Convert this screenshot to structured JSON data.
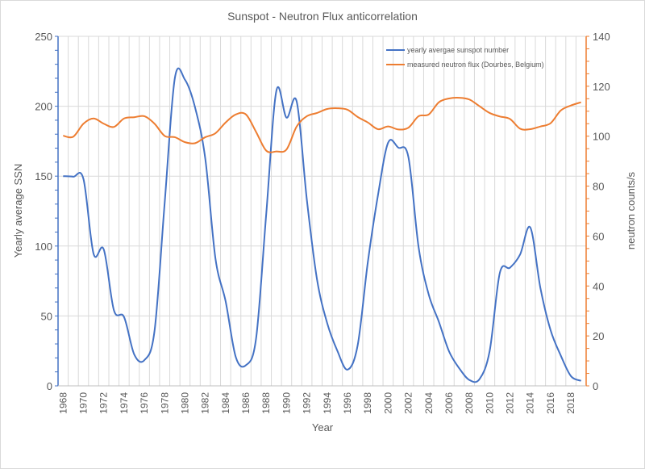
{
  "chart_data": {
    "type": "line",
    "title": "Sunspot - Neutron Flux anticorrelation",
    "xlabel": "Year",
    "ylabel": "Yearly average SSN",
    "y2label": "neutron counts/s",
    "ylim": [
      0,
      250
    ],
    "y2lim": [
      0,
      140
    ],
    "yticks": [
      0,
      50,
      100,
      150,
      200,
      250
    ],
    "y2ticks": [
      0,
      20,
      40,
      60,
      80,
      100,
      120,
      140
    ],
    "xtick_labels": [
      "1968",
      "1970",
      "1972",
      "1974",
      "1976",
      "1978",
      "1980",
      "1982",
      "1984",
      "1986",
      "1988",
      "1990",
      "1992",
      "1994",
      "1996",
      "1998",
      "2000",
      "2002",
      "2004",
      "2006",
      "2008",
      "2010",
      "2012",
      "2014",
      "2016",
      "2018"
    ],
    "grid": true,
    "legend_position": "top-right",
    "x": [
      1968,
      1969,
      1970,
      1971,
      1972,
      1973,
      1974,
      1975,
      1976,
      1977,
      1978,
      1979,
      1980,
      1981,
      1982,
      1983,
      1984,
      1985,
      1986,
      1987,
      1988,
      1989,
      1990,
      1991,
      1992,
      1993,
      1994,
      1995,
      1996,
      1997,
      1998,
      1999,
      2000,
      2001,
      2002,
      2003,
      2004,
      2005,
      2006,
      2007,
      2008,
      2009,
      2010,
      2011,
      2012,
      2013,
      2014,
      2015,
      2016,
      2017,
      2018,
      2019
    ],
    "series": [
      {
        "name": "yearly avergae sunspot number",
        "axis": "left",
        "color": "#4472c4",
        "values": [
          150,
          149.6,
          148,
          94.4,
          97.6,
          54.1,
          49.2,
          22.5,
          18.4,
          39.3,
          131,
          220.1,
          218.9,
          198.9,
          162.4,
          91,
          60.5,
          20.6,
          14.8,
          33.9,
          123,
          211.1,
          191.8,
          203.3,
          133,
          76.1,
          44.9,
          25.1,
          11.6,
          28.9,
          88.3,
          136.3,
          173.9,
          170.4,
          163.6,
          99.3,
          65.3,
          45.8,
          24.7,
          12.6,
          4.2,
          4.8,
          24.9,
          80.8,
          84.5,
          94,
          113.3,
          69.8,
          39.8,
          21.7,
          7,
          3.6
        ]
      },
      {
        "name": "measured neutron flux (Dourbes, Belgium)",
        "axis": "right",
        "color": "#ed7d31",
        "values": [
          100.2,
          99.8,
          105,
          107.1,
          105,
          103.7,
          107.1,
          107.6,
          108,
          105,
          100.1,
          99.6,
          97.6,
          97.2,
          99.6,
          101.2,
          105.5,
          108.7,
          108.7,
          101.7,
          94.2,
          93.9,
          94.7,
          103.9,
          108,
          109.3,
          110.9,
          111.2,
          110.6,
          107.7,
          105.5,
          102.8,
          103.9,
          102.7,
          103.4,
          108,
          108.7,
          113.6,
          115.1,
          115.4,
          114.7,
          112,
          109.3,
          107.9,
          106.9,
          103,
          102.8,
          103.9,
          105.2,
          110.3,
          112.3,
          113.6
        ]
      }
    ]
  }
}
